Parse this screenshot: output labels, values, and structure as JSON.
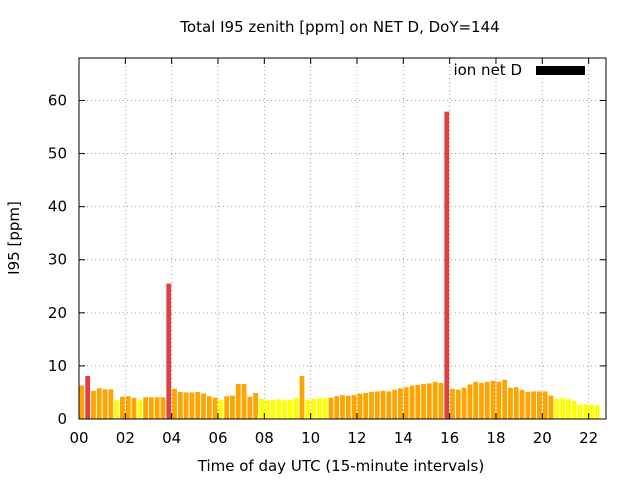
{
  "chart_data": {
    "type": "bar",
    "title": "Total I95 zenith [ppm] on NET D, DoY=144",
    "xlabel": "Time of day UTC (15-minute intervals)",
    "ylabel": "I95 [ppm]",
    "legend_label": "ion net D",
    "legend_color": "#000000",
    "legend_position": "top-right",
    "grid": true,
    "xlim": [
      0,
      22.75
    ],
    "ylim": [
      0,
      68
    ],
    "x_ticks": [
      0,
      2,
      4,
      6,
      8,
      10,
      12,
      14,
      16,
      18,
      20,
      22
    ],
    "x_tick_labels": [
      "00",
      "02",
      "04",
      "06",
      "08",
      "10",
      "12",
      "14",
      "16",
      "18",
      "20",
      "22"
    ],
    "y_ticks": [
      0,
      10,
      20,
      30,
      40,
      50,
      60
    ],
    "y_tick_labels": [
      "0",
      "10",
      "20",
      "30",
      "40",
      "50",
      "60"
    ],
    "interval_hours": 0.25,
    "colors": {
      "low": "#ffff00",
      "mid": "#ffa500",
      "high": "#e04040"
    },
    "values": [
      6.3,
      8.1,
      5.3,
      5.8,
      5.6,
      5.6,
      3.5,
      4.2,
      4.3,
      4.0,
      3.5,
      4.1,
      4.1,
      4.1,
      4.1,
      25.5,
      5.7,
      5.1,
      5.0,
      5.0,
      5.1,
      4.8,
      4.3,
      4.0,
      3.6,
      4.3,
      4.4,
      6.6,
      6.6,
      4.2,
      4.9,
      3.8,
      3.6,
      3.6,
      3.7,
      3.5,
      3.6,
      3.9,
      8.1,
      3.6,
      3.8,
      3.9,
      3.9,
      4.0,
      4.3,
      4.5,
      4.4,
      4.5,
      4.8,
      4.9,
      5.1,
      5.2,
      5.3,
      5.2,
      5.5,
      5.8,
      6.0,
      6.3,
      6.4,
      6.6,
      6.7,
      7.0,
      6.8,
      57.9,
      5.7,
      5.5,
      5.9,
      6.5,
      7.0,
      6.8,
      7.0,
      7.2,
      7.0,
      7.4,
      5.9,
      6.0,
      5.5,
      5.1,
      5.2,
      5.2,
      5.2,
      4.4,
      3.8,
      3.9,
      3.8,
      3.4,
      2.7,
      2.8,
      2.7,
      2.6
    ],
    "bar_colors": [
      "mid",
      "high",
      "mid",
      "mid",
      "mid",
      "mid",
      "low",
      "mid",
      "mid",
      "mid",
      "low",
      "mid",
      "mid",
      "mid",
      "mid",
      "high",
      "mid",
      "mid",
      "mid",
      "mid",
      "mid",
      "mid",
      "mid",
      "mid",
      "low",
      "mid",
      "mid",
      "mid",
      "mid",
      "mid",
      "mid",
      "low",
      "low",
      "low",
      "low",
      "low",
      "low",
      "low",
      "mid",
      "low",
      "low",
      "low",
      "low",
      "mid",
      "mid",
      "mid",
      "mid",
      "mid",
      "mid",
      "mid",
      "mid",
      "mid",
      "mid",
      "mid",
      "mid",
      "mid",
      "mid",
      "mid",
      "mid",
      "mid",
      "mid",
      "mid",
      "mid",
      "high",
      "mid",
      "mid",
      "mid",
      "mid",
      "mid",
      "mid",
      "mid",
      "mid",
      "mid",
      "mid",
      "mid",
      "mid",
      "mid",
      "mid",
      "mid",
      "mid",
      "mid",
      "mid",
      "low",
      "low",
      "low",
      "low",
      "low",
      "low",
      "low",
      "low"
    ]
  }
}
